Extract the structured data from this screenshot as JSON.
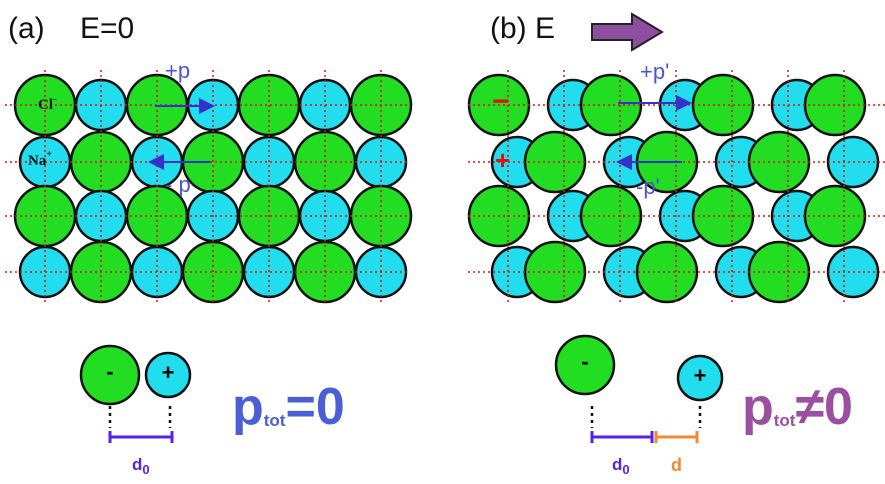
{
  "panel_a": {
    "label": "(a)",
    "field": "E=0",
    "ion_cl": {
      "symbol": "Cl",
      "charge": "-"
    },
    "ion_na": {
      "symbol": "Na",
      "charge": "+"
    },
    "dipole_right": "+p",
    "dipole_left": "- p",
    "pair": {
      "anion": "-",
      "cation": "+",
      "distance": {
        "symbol": "d",
        "subscript": "0"
      }
    },
    "total": {
      "symbol": "p",
      "subscript": "tot",
      "relation": "=0"
    }
  },
  "panel_b": {
    "label": "(b) E",
    "anion_mark": "−",
    "cation_mark": "+",
    "dipole_right": "+p'",
    "dipole_left": "-p'",
    "pair": {
      "anion": "-",
      "cation": "+",
      "distance": {
        "symbol": "d",
        "subscript": "0"
      },
      "shift": "d"
    },
    "total": {
      "symbol": "p",
      "subscript": "tot",
      "relation": "≠0"
    }
  }
}
